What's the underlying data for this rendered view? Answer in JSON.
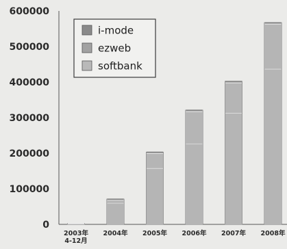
{
  "chart_data": {
    "type": "bar",
    "stacked": true,
    "categories": [
      "2003年\n4-12月",
      "2004年",
      "2005年",
      "2006年",
      "2007年",
      "2008年"
    ],
    "series": [
      {
        "name": "i-mode",
        "values": [
          0,
          3000,
          3000,
          4000,
          4000,
          4000
        ]
      },
      {
        "name": "ezweb",
        "values": [
          0,
          8000,
          42000,
          90000,
          85000,
          126000
        ]
      },
      {
        "name": "softbank",
        "values": [
          2000,
          60000,
          158000,
          227000,
          313000,
          437000
        ]
      }
    ],
    "ylim": [
      0,
      600000
    ],
    "yticks": [
      0,
      100000,
      200000,
      300000,
      400000,
      500000,
      600000
    ],
    "grid": false,
    "legend_position": "top-left",
    "colors": {
      "background": "#ebebe9",
      "bar_fill": "#b5b5b5",
      "bar_stroke": "#7a7a7a",
      "segment_line": "#f4f4f4",
      "axis": "#555555",
      "legend_swatches": [
        "#8a8a8a",
        "#a2a2a2",
        "#b9b9b9"
      ]
    }
  }
}
